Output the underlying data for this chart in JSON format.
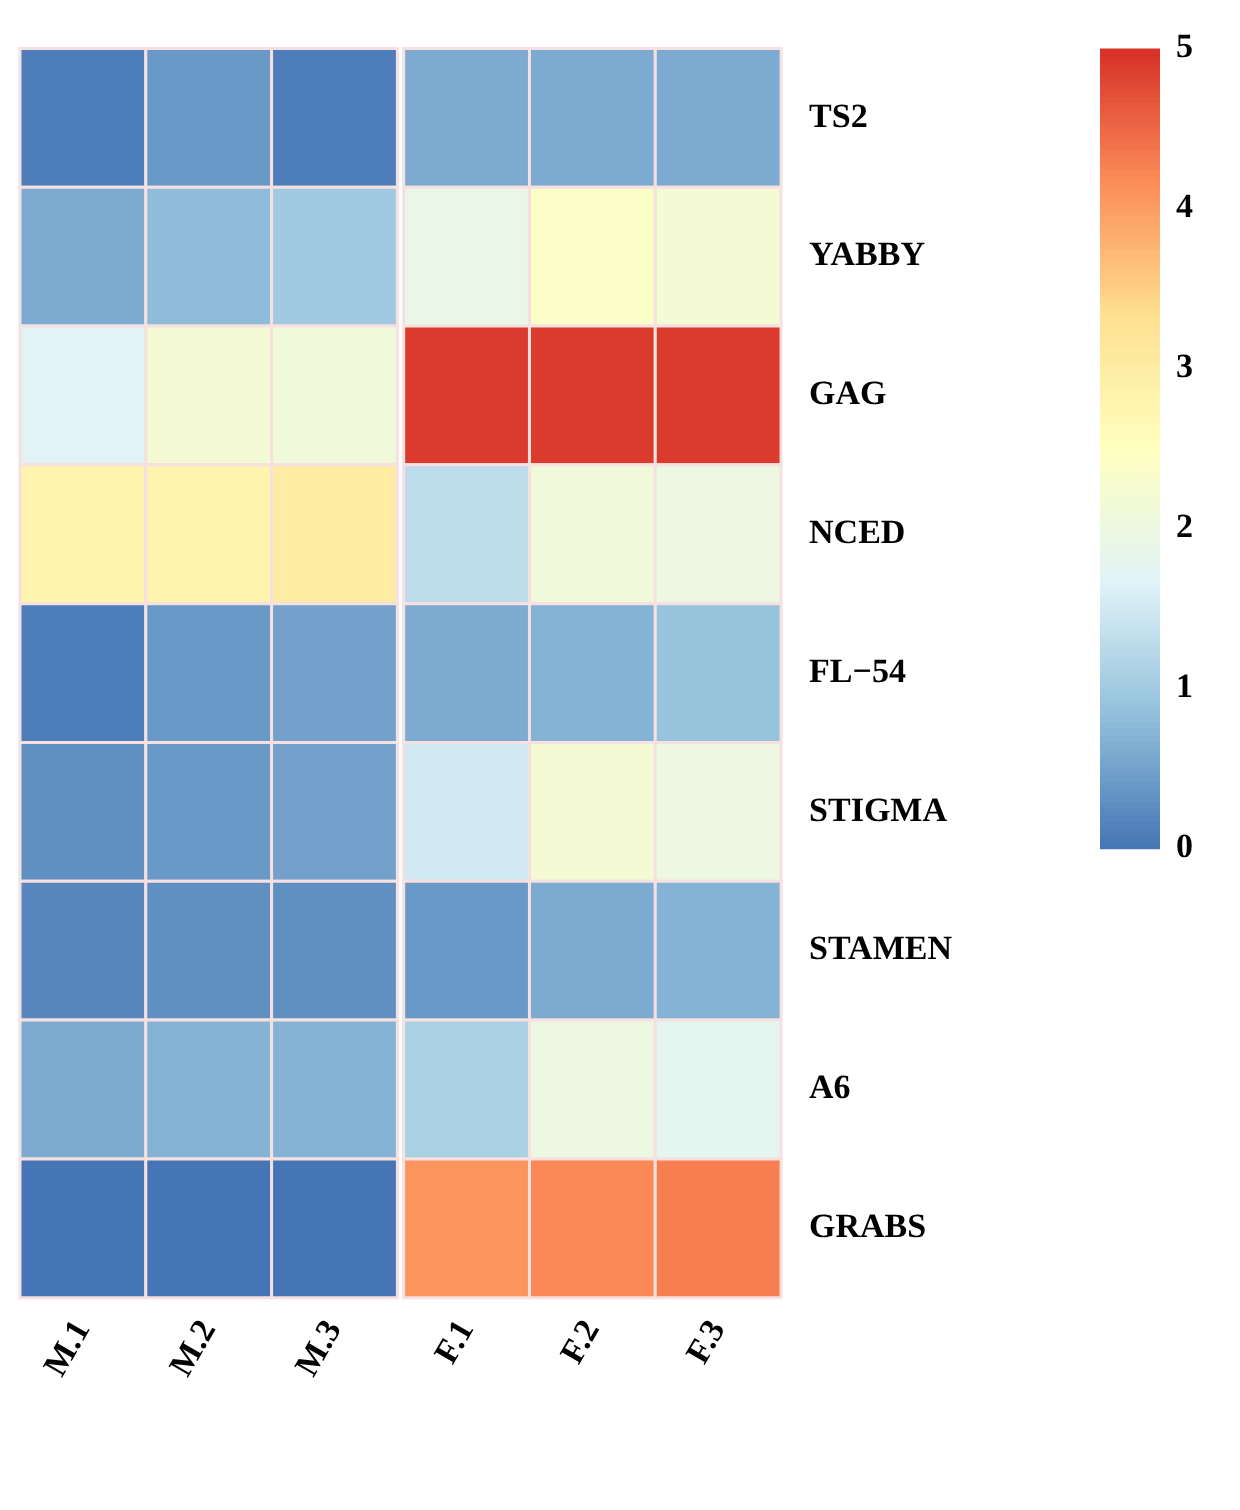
{
  "chart_data": {
    "type": "heatmap",
    "categories": [
      "M.1",
      "M.2",
      "M.3",
      "F.1",
      "F.2",
      "F.3"
    ],
    "y_categories": [
      "TS2",
      "YABBY",
      "GAG",
      "NCED",
      "FL−54",
      "STIGMA",
      "STAMEN",
      "A6",
      "GRABS"
    ],
    "cells": [
      [
        0.1,
        0.4,
        0.1,
        0.6,
        0.6,
        0.6
      ],
      [
        0.6,
        0.8,
        1.0,
        1.9,
        2.4,
        2.2
      ],
      [
        1.7,
        2.2,
        2.1,
        4.9,
        4.9,
        4.9
      ],
      [
        2.8,
        2.8,
        3.0,
        1.3,
        2.1,
        2.0
      ],
      [
        0.1,
        0.4,
        0.5,
        0.6,
        0.7,
        0.9
      ],
      [
        0.3,
        0.4,
        0.5,
        1.5,
        2.2,
        2.0
      ],
      [
        0.2,
        0.3,
        0.3,
        0.4,
        0.6,
        0.7
      ],
      [
        0.6,
        0.7,
        0.7,
        1.1,
        2.0,
        1.8
      ],
      [
        0.0,
        0.0,
        0.0,
        4.1,
        4.2,
        4.3
      ]
    ],
    "clim": [
      0,
      5
    ],
    "cticks": [
      0,
      1,
      2,
      3,
      4,
      5
    ]
  }
}
